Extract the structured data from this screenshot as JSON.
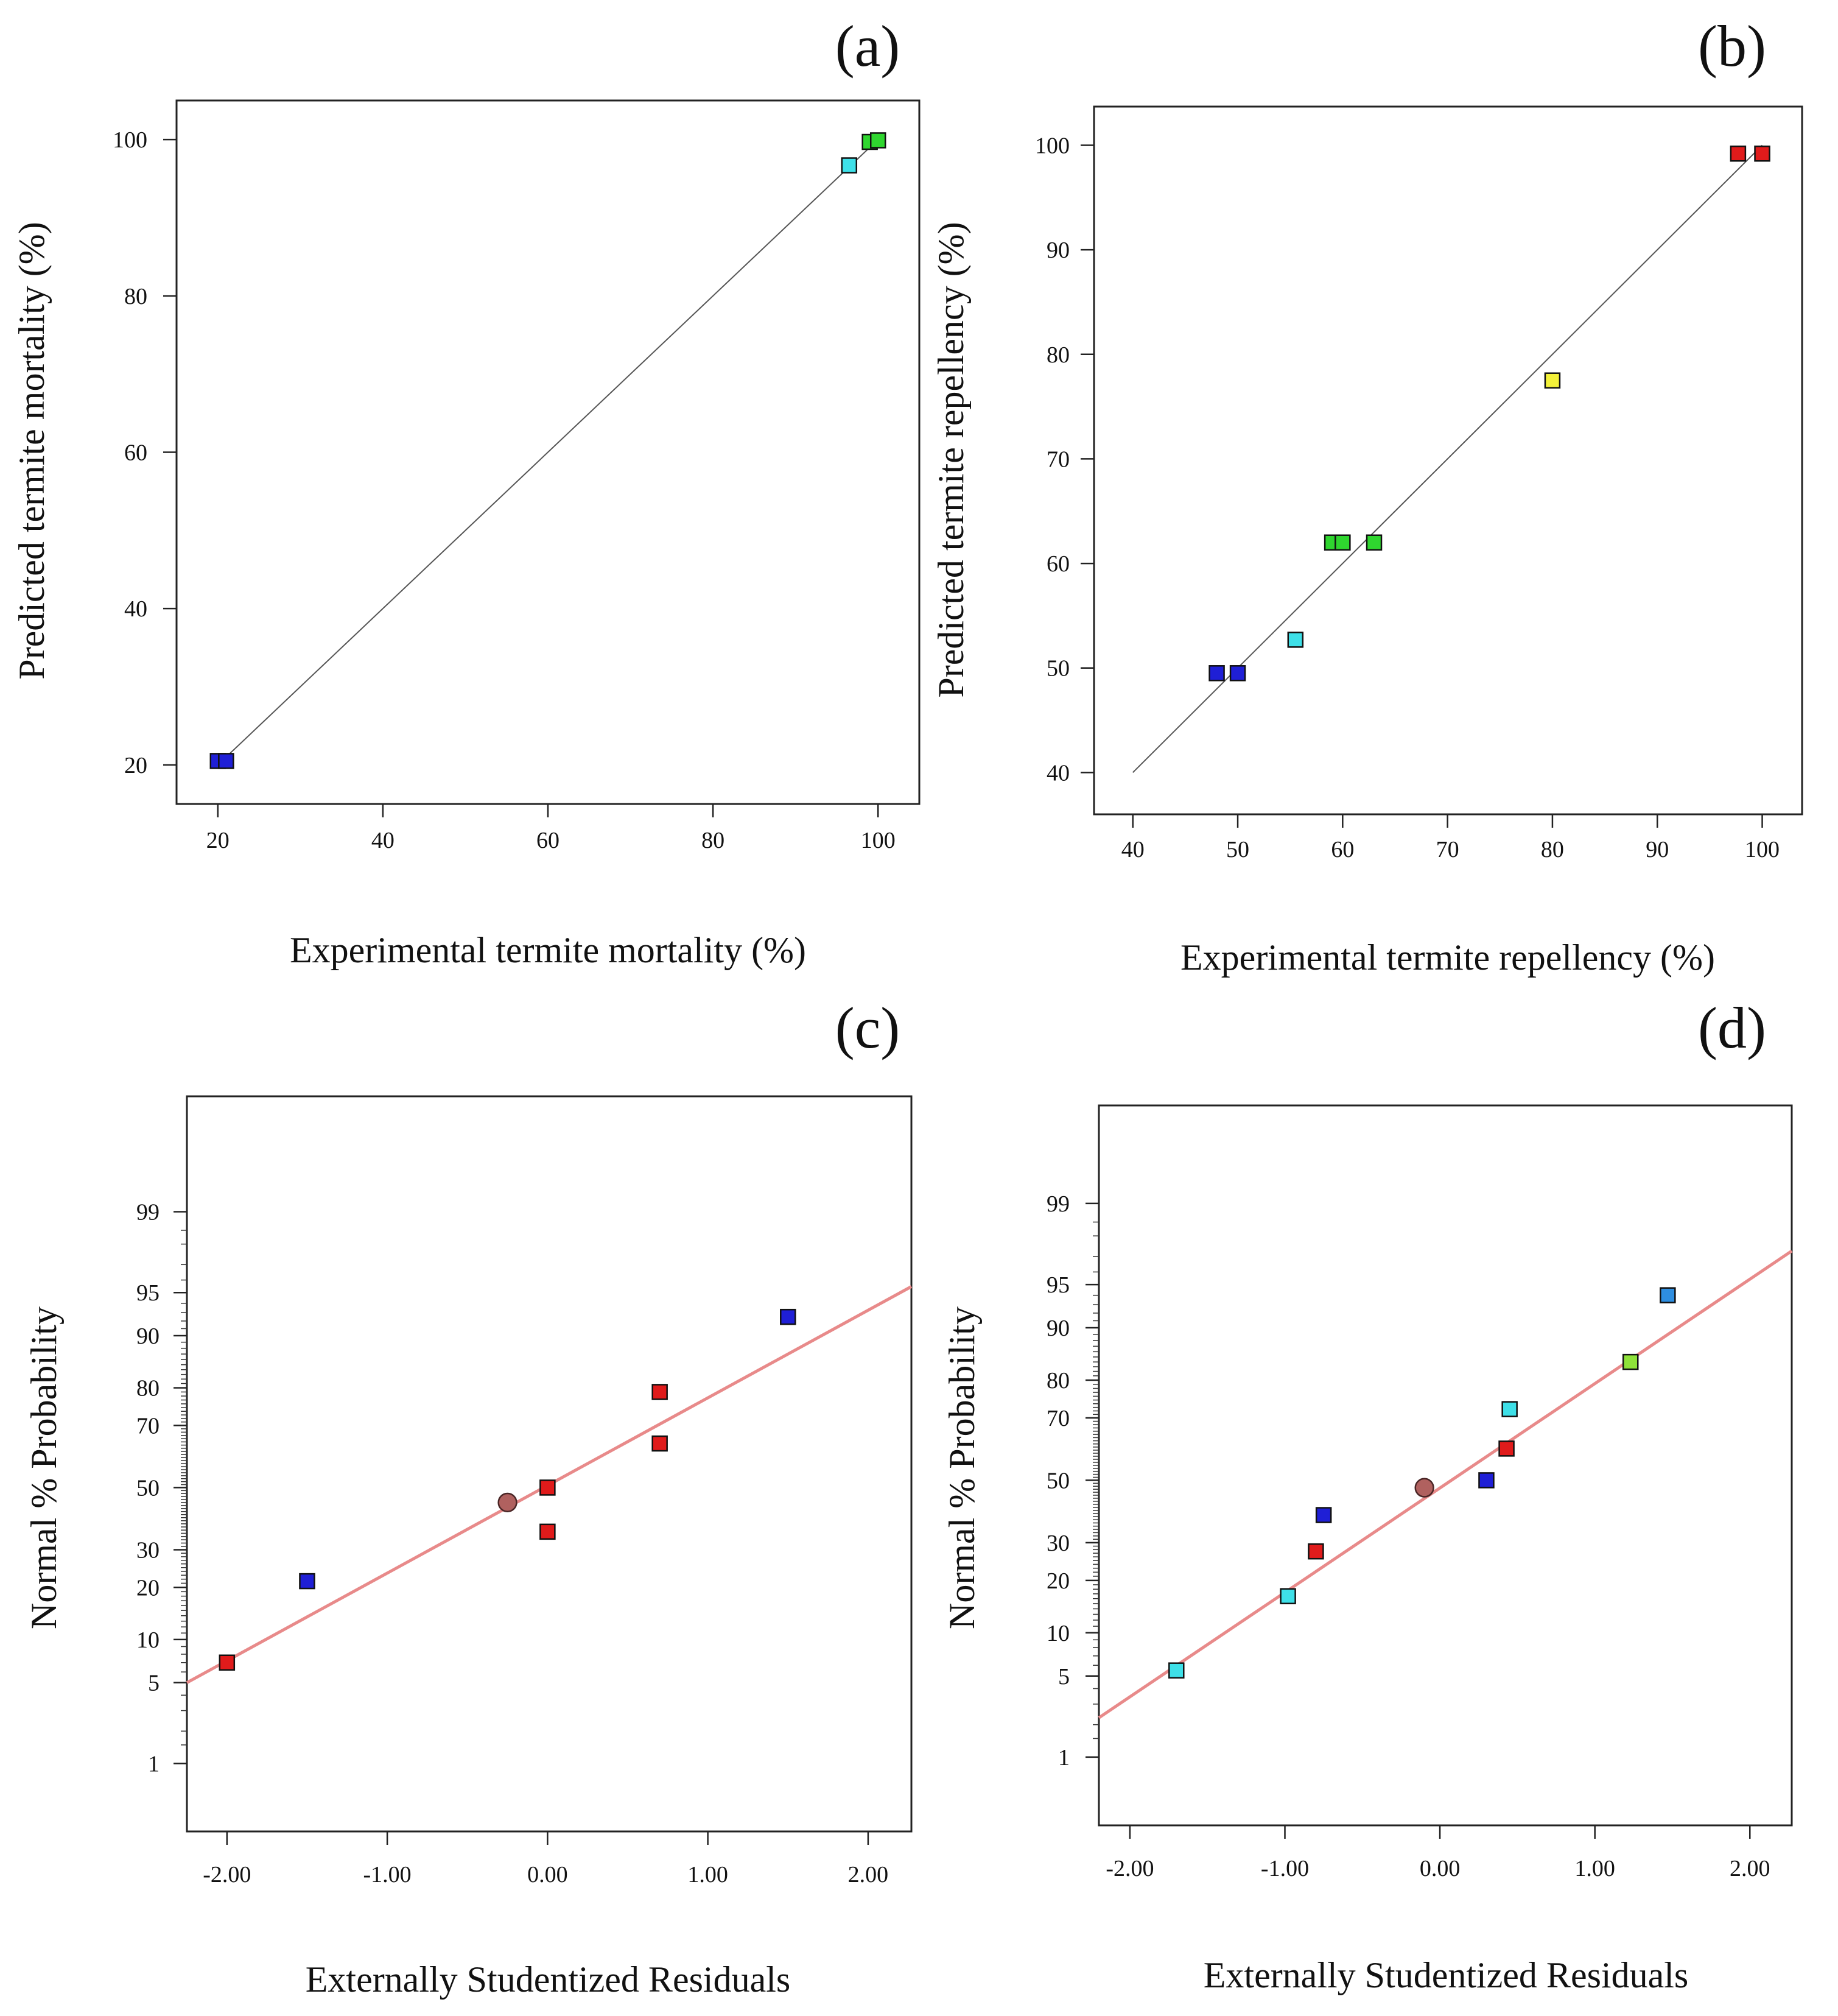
{
  "figure": {
    "background": "#ffffff"
  },
  "chart_data": [
    {
      "panel": "(a)",
      "type": "scatter",
      "xlabel": "Experimental termite mortality (%)",
      "ylabel": "Predicted termite mortality (%)",
      "xlim": [
        15,
        105
      ],
      "ylim": [
        15,
        105
      ],
      "xticks": [
        20,
        40,
        60,
        80,
        100
      ],
      "yticks": [
        20,
        40,
        60,
        80,
        100
      ],
      "xtick_labels": [
        "20",
        "40",
        "60",
        "80",
        "100"
      ],
      "ytick_labels": [
        "20",
        "40",
        "60",
        "80",
        "100"
      ],
      "reference_line": {
        "type": "identity",
        "from": [
          20,
          20
        ],
        "to": [
          100,
          100
        ],
        "color": "#555555"
      },
      "points": [
        {
          "x": 20,
          "y": 20.5,
          "color": "#1f1fd6",
          "marker": "square"
        },
        {
          "x": 21,
          "y": 20.5,
          "color": "#1f1fd6",
          "marker": "square"
        },
        {
          "x": 96.5,
          "y": 96.7,
          "color": "#3ee0e8",
          "marker": "square"
        },
        {
          "x": 99,
          "y": 99.7,
          "color": "#2fd62f",
          "marker": "square"
        },
        {
          "x": 100,
          "y": 99.9,
          "color": "#2fd62f",
          "marker": "square"
        }
      ]
    },
    {
      "panel": "(b)",
      "type": "scatter",
      "xlabel": "Experimental termite repellency (%)",
      "ylabel": "Predicted termite repellency (%)",
      "xlim": [
        36.3,
        103.8
      ],
      "ylim": [
        36,
        103.7
      ],
      "xticks": [
        40,
        50,
        60,
        70,
        80,
        90,
        100
      ],
      "yticks": [
        40,
        50,
        60,
        70,
        80,
        90,
        100
      ],
      "xtick_labels": [
        "40",
        "50",
        "60",
        "70",
        "80",
        "90",
        "100"
      ],
      "ytick_labels": [
        "40",
        "50",
        "60",
        "70",
        "80",
        "90",
        "100"
      ],
      "reference_line": {
        "type": "identity",
        "from": [
          40,
          40
        ],
        "to": [
          100,
          100
        ],
        "color": "#555555"
      },
      "points": [
        {
          "x": 48,
          "y": 49.5,
          "color": "#1f1fd6",
          "marker": "square"
        },
        {
          "x": 50,
          "y": 49.5,
          "color": "#1f1fd6",
          "marker": "square"
        },
        {
          "x": 55.5,
          "y": 52.7,
          "color": "#3ee0e8",
          "marker": "square"
        },
        {
          "x": 59,
          "y": 62,
          "color": "#2fd62f",
          "marker": "square"
        },
        {
          "x": 60,
          "y": 62,
          "color": "#2fd62f",
          "marker": "square"
        },
        {
          "x": 63,
          "y": 62,
          "color": "#2fd62f",
          "marker": "square"
        },
        {
          "x": 80,
          "y": 77.5,
          "color": "#f4f23a",
          "marker": "square"
        },
        {
          "x": 97.7,
          "y": 99.2,
          "color": "#e01b1b",
          "marker": "square"
        },
        {
          "x": 100,
          "y": 99.2,
          "color": "#e01b1b",
          "marker": "square"
        }
      ]
    },
    {
      "panel": "(c)",
      "type": "scatter",
      "xlabel": "Externally Studentized Residuals",
      "ylabel": "Normal % Probability",
      "xlim": [
        -2.25,
        2.27
      ],
      "y_scale": "normal-probability",
      "xticks": [
        -2,
        -1,
        0,
        1,
        2
      ],
      "xtick_labels": [
        "-2.00",
        "-1.00",
        "0.00",
        "1.00",
        "2.00"
      ],
      "yticks": [
        1,
        5,
        10,
        20,
        30,
        50,
        70,
        80,
        90,
        95,
        99
      ],
      "ytick_labels": [
        "1",
        "5",
        "10",
        "20",
        "30",
        "50",
        "70",
        "80",
        "90",
        "95",
        "99"
      ],
      "reference_line": {
        "type": "fit",
        "from": [
          -2.25,
          5
        ],
        "to": [
          2.27,
          95.5
        ],
        "color": "#e88a8a"
      },
      "points": [
        {
          "x": -2.0,
          "y": 7,
          "color": "#e01b1b",
          "marker": "square"
        },
        {
          "x": -1.5,
          "y": 21.5,
          "color": "#1f1fd6",
          "marker": "square"
        },
        {
          "x": -0.25,
          "y": 45,
          "color": "#b0615f",
          "marker": "circle"
        },
        {
          "x": 0.0,
          "y": 50,
          "color": "#e01b1b",
          "marker": "square"
        },
        {
          "x": 0.0,
          "y": 35.5,
          "color": "#e01b1b",
          "marker": "square"
        },
        {
          "x": 0.7,
          "y": 79,
          "color": "#e01b1b",
          "marker": "square"
        },
        {
          "x": 0.7,
          "y": 64.5,
          "color": "#e01b1b",
          "marker": "square"
        },
        {
          "x": 1.5,
          "y": 92.5,
          "color": "#1f1fd6",
          "marker": "square"
        }
      ]
    },
    {
      "panel": "(d)",
      "type": "scatter",
      "xlabel": "Externally Studentized Residuals",
      "ylabel": "Normal % Probability",
      "xlim": [
        -2.2,
        2.27
      ],
      "y_scale": "normal-probability",
      "xticks": [
        -2,
        -1,
        0,
        1,
        2
      ],
      "xtick_labels": [
        "-2.00",
        "-1.00",
        "0.00",
        "1.00",
        "2.00"
      ],
      "yticks": [
        1,
        5,
        10,
        20,
        30,
        50,
        70,
        80,
        90,
        95,
        99
      ],
      "ytick_labels": [
        "1",
        "5",
        "10",
        "20",
        "30",
        "50",
        "70",
        "80",
        "90",
        "95",
        "99"
      ],
      "reference_line": {
        "type": "fit",
        "from": [
          -2.2,
          2.3
        ],
        "to": [
          2.27,
          97.3
        ],
        "color": "#e88a8a"
      },
      "points": [
        {
          "x": -1.7,
          "y": 5.5,
          "color": "#3ee0e8",
          "marker": "square"
        },
        {
          "x": -0.98,
          "y": 16.5,
          "color": "#3ee0e8",
          "marker": "square"
        },
        {
          "x": -0.8,
          "y": 27.5,
          "color": "#e01b1b",
          "marker": "square"
        },
        {
          "x": -0.75,
          "y": 38.5,
          "color": "#1f1fd6",
          "marker": "square"
        },
        {
          "x": -0.1,
          "y": 47.5,
          "color": "#b0615f",
          "marker": "circle"
        },
        {
          "x": 0.3,
          "y": 50,
          "color": "#1f1fd6",
          "marker": "square"
        },
        {
          "x": 0.43,
          "y": 60.5,
          "color": "#e01b1b",
          "marker": "square"
        },
        {
          "x": 0.45,
          "y": 72.5,
          "color": "#3ee0e8",
          "marker": "square"
        },
        {
          "x": 1.23,
          "y": 84,
          "color": "#8fe23a",
          "marker": "square"
        },
        {
          "x": 1.47,
          "y": 94,
          "color": "#2e8ee0",
          "marker": "square"
        }
      ]
    }
  ]
}
